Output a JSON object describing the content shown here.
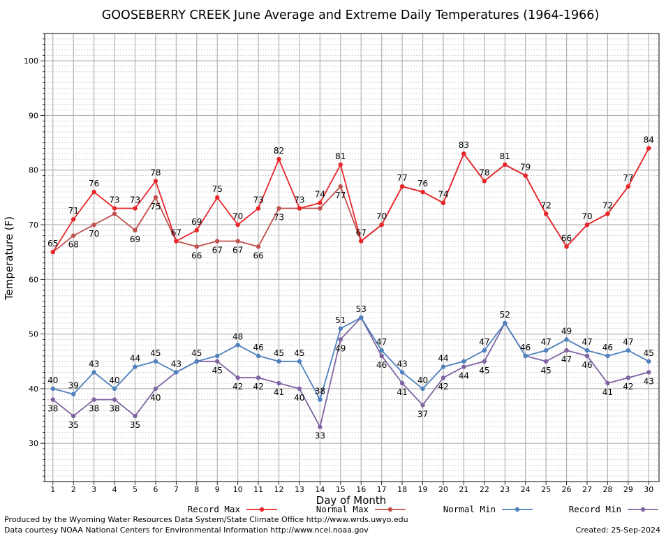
{
  "chart_data": {
    "type": "line",
    "title": "GOOSEBERRY CREEK June Average and Extreme Daily Temperatures (1964-1966)",
    "xlabel": "Day of Month",
    "ylabel": "Temperature (F)",
    "xlim": [
      0.6,
      30.5
    ],
    "ylim": [
      23,
      105
    ],
    "x": [
      1,
      2,
      3,
      4,
      5,
      6,
      7,
      8,
      9,
      10,
      11,
      12,
      13,
      14,
      15,
      16,
      17,
      18,
      19,
      20,
      21,
      22,
      23,
      24,
      25,
      26,
      27,
      28,
      29,
      30
    ],
    "x_tick_labels": [
      "1",
      "2",
      "3",
      "4",
      "5",
      "6",
      "7",
      "8",
      "9",
      "10",
      "11",
      "12",
      "13",
      "14",
      "15",
      "16",
      "17",
      "18",
      "19",
      "20",
      "21",
      "22",
      "23",
      "24",
      "25",
      "26",
      "27",
      "28",
      "29",
      "30"
    ],
    "y_ticks": [
      30,
      40,
      50,
      60,
      70,
      80,
      90,
      100
    ],
    "y_tick_labels": [
      "30",
      "40",
      "50",
      "60",
      "70",
      "80",
      "90",
      "100"
    ],
    "grid": true,
    "legend_position": "bottom",
    "series": [
      {
        "name": "Record Max",
        "color": "#e8262a",
        "values": [
          65,
          71,
          76,
          73,
          73,
          78,
          67,
          69,
          75,
          70,
          73,
          82,
          73,
          74,
          81,
          67,
          70,
          77,
          76,
          74,
          83,
          78,
          81,
          79,
          72,
          66,
          70,
          72,
          77,
          84
        ],
        "labels": [
          "65",
          "71",
          "76",
          "73",
          "73",
          "78",
          "67",
          "69",
          "75",
          "70",
          "73",
          "82",
          "73",
          "74",
          "81",
          "67",
          "70",
          "77",
          "76",
          "74",
          "83",
          "78",
          "81",
          "79",
          "72",
          "66",
          "70",
          "72",
          "77",
          "84"
        ]
      },
      {
        "name": "Normal Max",
        "color": "#c0504d",
        "values": [
          65,
          68,
          70,
          72,
          69,
          75,
          67,
          66,
          67,
          67,
          66,
          73,
          73,
          73,
          77,
          67,
          70,
          77,
          76,
          74,
          83,
          78,
          81,
          79,
          72,
          66,
          70,
          72,
          77,
          84
        ],
        "labels": [
          "",
          "68",
          "70",
          "",
          "69",
          "75",
          "",
          "66",
          "67",
          "67",
          "66",
          "73",
          "",
          "",
          "77",
          "",
          "",
          "",
          "",
          "",
          "",
          "",
          "",
          "",
          "",
          "",
          "",
          "",
          "",
          ""
        ]
      },
      {
        "name": "Normal Min",
        "color": "#4f81bd",
        "values": [
          40,
          39,
          43,
          40,
          44,
          45,
          43,
          45,
          46,
          48,
          46,
          45,
          45,
          38,
          51,
          53,
          47,
          43,
          40,
          44,
          45,
          47,
          52,
          46,
          47,
          49,
          47,
          46,
          47,
          45
        ],
        "labels": [
          "40",
          "39",
          "43",
          "40",
          "44",
          "45",
          "43",
          "45",
          "",
          "48",
          "46",
          "45",
          "45",
          "38",
          "51",
          "53",
          "47",
          "43",
          "40",
          "44",
          "",
          "47",
          "52",
          "46",
          "47",
          "49",
          "47",
          "46",
          "47",
          "45"
        ]
      },
      {
        "name": "Record Min",
        "color": "#8064a2",
        "values": [
          38,
          35,
          38,
          38,
          35,
          40,
          43,
          45,
          45,
          42,
          42,
          41,
          40,
          33,
          49,
          53,
          46,
          41,
          37,
          42,
          44,
          45,
          52,
          46,
          45,
          47,
          46,
          41,
          42,
          43
        ],
        "labels": [
          "38",
          "35",
          "38",
          "38",
          "35",
          "40",
          "",
          "",
          "45",
          "42",
          "42",
          "41",
          "40",
          "33",
          "49",
          "",
          "46",
          "41",
          "37",
          "42",
          "44",
          "45",
          "",
          "",
          "45",
          "47",
          "46",
          "41",
          "42",
          "43"
        ]
      }
    ]
  },
  "footer": {
    "produced_by": "Produced by the Wyoming Water Resources Data System/State Climate Office http://www.wrds.uwyo.edu",
    "data_courtesy": "Data courtesy NOAA National Centers for Environmental Information http://www.ncei.noaa.gov",
    "created": "Created:  25-Sep-2024"
  }
}
